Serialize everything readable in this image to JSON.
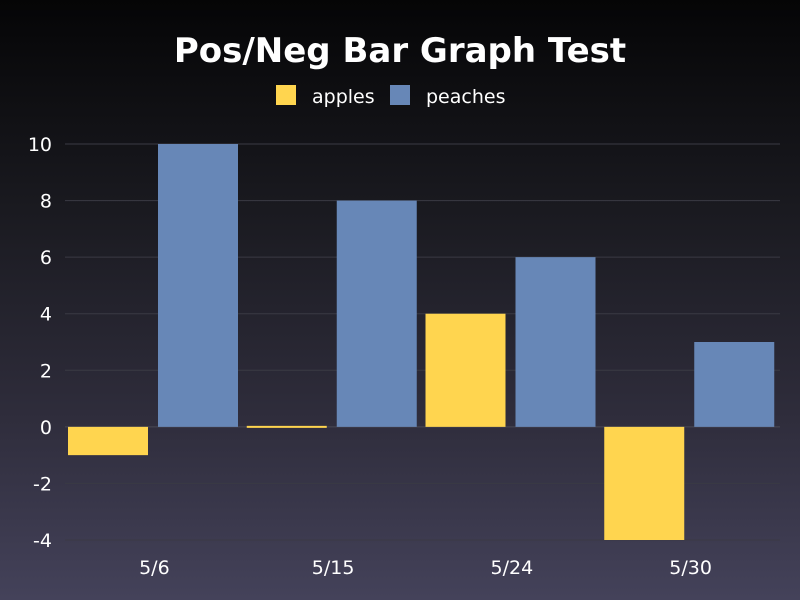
{
  "chart_data": {
    "type": "bar",
    "title": "Pos/Neg Bar Graph Test",
    "categories": [
      "5/6",
      "5/15",
      "5/24",
      "5/30"
    ],
    "series": [
      {
        "name": "apples",
        "color": "#ffd54f",
        "values": [
          -1,
          0,
          4,
          -4
        ]
      },
      {
        "name": "peaches",
        "color": "#6787b7",
        "values": [
          10,
          8,
          6,
          3
        ]
      }
    ],
    "ylim": [
      -4,
      10
    ],
    "yticks": [
      10,
      8,
      6,
      4,
      2,
      0,
      -2,
      -4
    ],
    "grid": true,
    "legend": "top-center"
  }
}
